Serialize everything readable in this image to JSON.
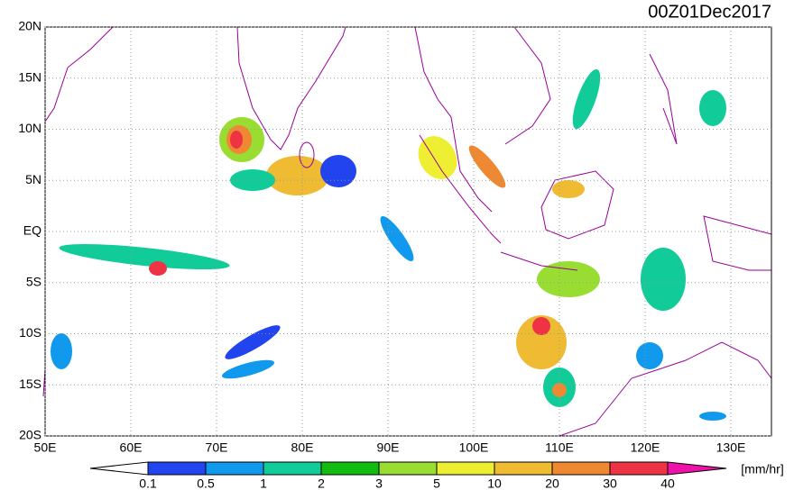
{
  "title": "00Z01Dec2017",
  "lat_labels": [
    "20N",
    "15N",
    "10N",
    "5N",
    "EQ",
    "5S",
    "10S",
    "15S",
    "20S"
  ],
  "lon_labels": [
    "50E",
    "60E",
    "70E",
    "80E",
    "90E",
    "100E",
    "110E",
    "120E",
    "130E"
  ],
  "colorbar": {
    "levels": [
      0.1,
      0.5,
      1,
      2,
      3,
      5,
      10,
      20,
      30,
      40
    ],
    "colors": [
      "#ffffff",
      "#2244ee",
      "#1199ee",
      "#11cc99",
      "#11bb11",
      "#99dd33",
      "#eeee33",
      "#eebb33",
      "#ee8833",
      "#ee3344",
      "#ee11aa"
    ],
    "unit": "[mm/hr]"
  }
}
